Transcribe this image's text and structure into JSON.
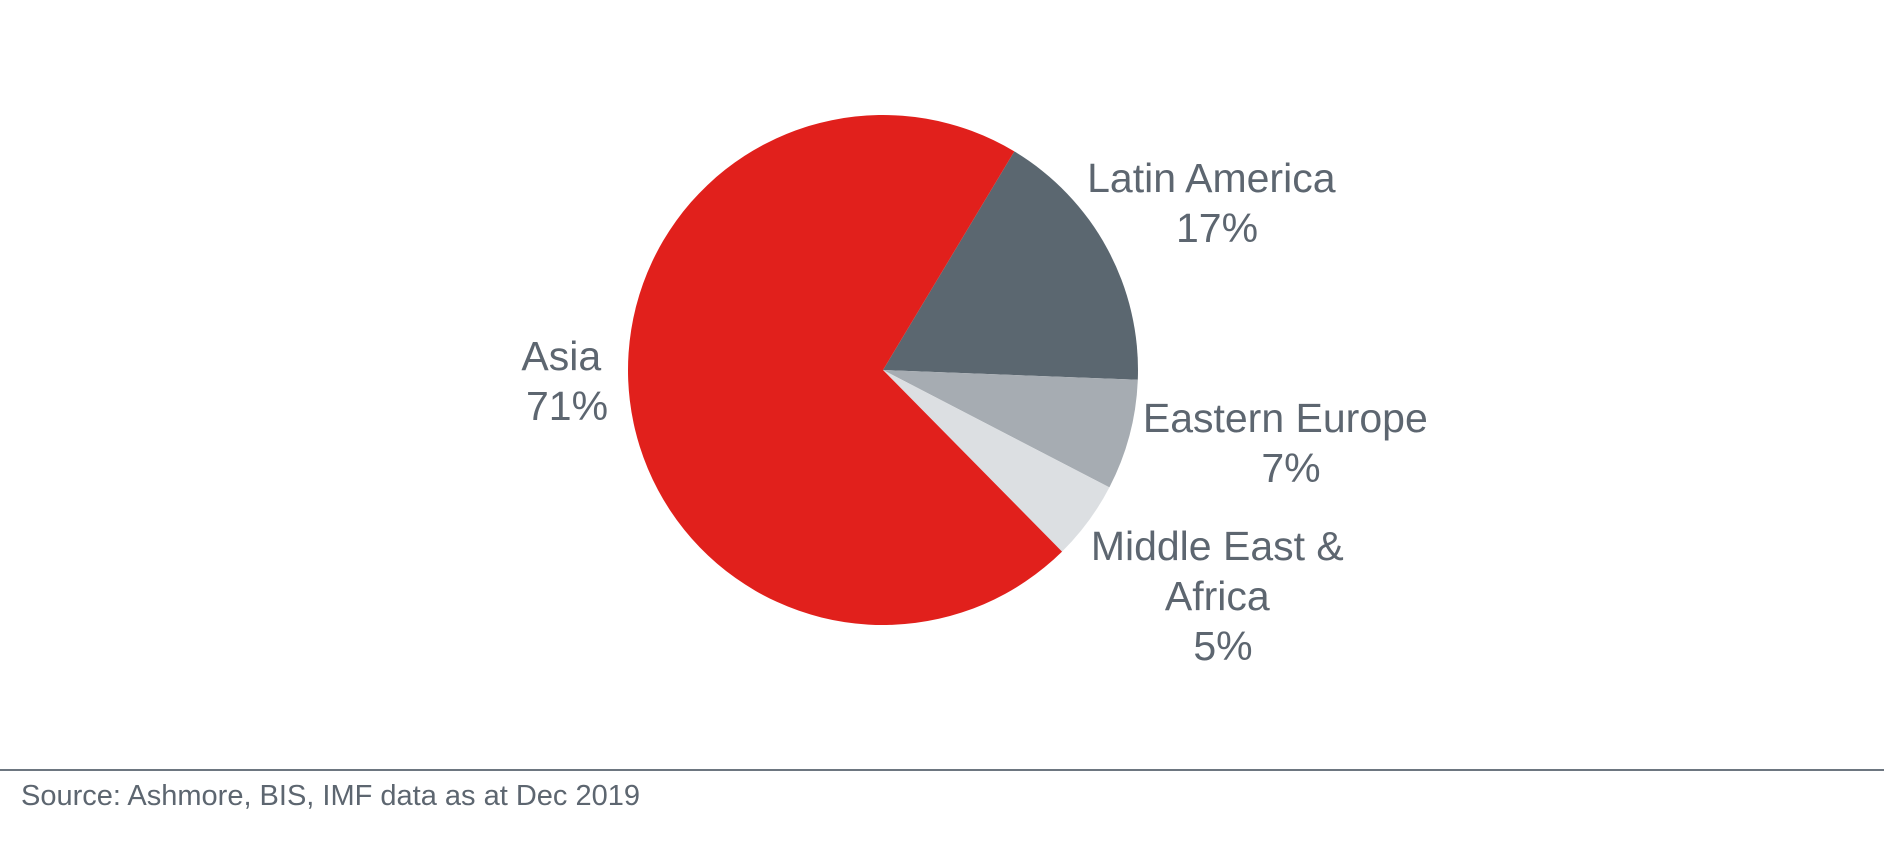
{
  "chart_data": {
    "type": "pie",
    "title": "",
    "slices": [
      {
        "label": "Latin America",
        "value": 17,
        "value_label": "17%",
        "color": "#5b6770"
      },
      {
        "label": "Eastern Europe",
        "value": 7,
        "value_label": "7%",
        "color": "#a6acb2"
      },
      {
        "label": "Middle East & Africa",
        "value": 5,
        "value_label": "5%",
        "color": "#dcdfe2"
      },
      {
        "label": "Asia",
        "value": 71,
        "value_label": "71%",
        "color": "#e1201c"
      }
    ],
    "legend": "none"
  },
  "footer": {
    "source": "Source: Ashmore, BIS, IMF data as at Dec 2019"
  }
}
